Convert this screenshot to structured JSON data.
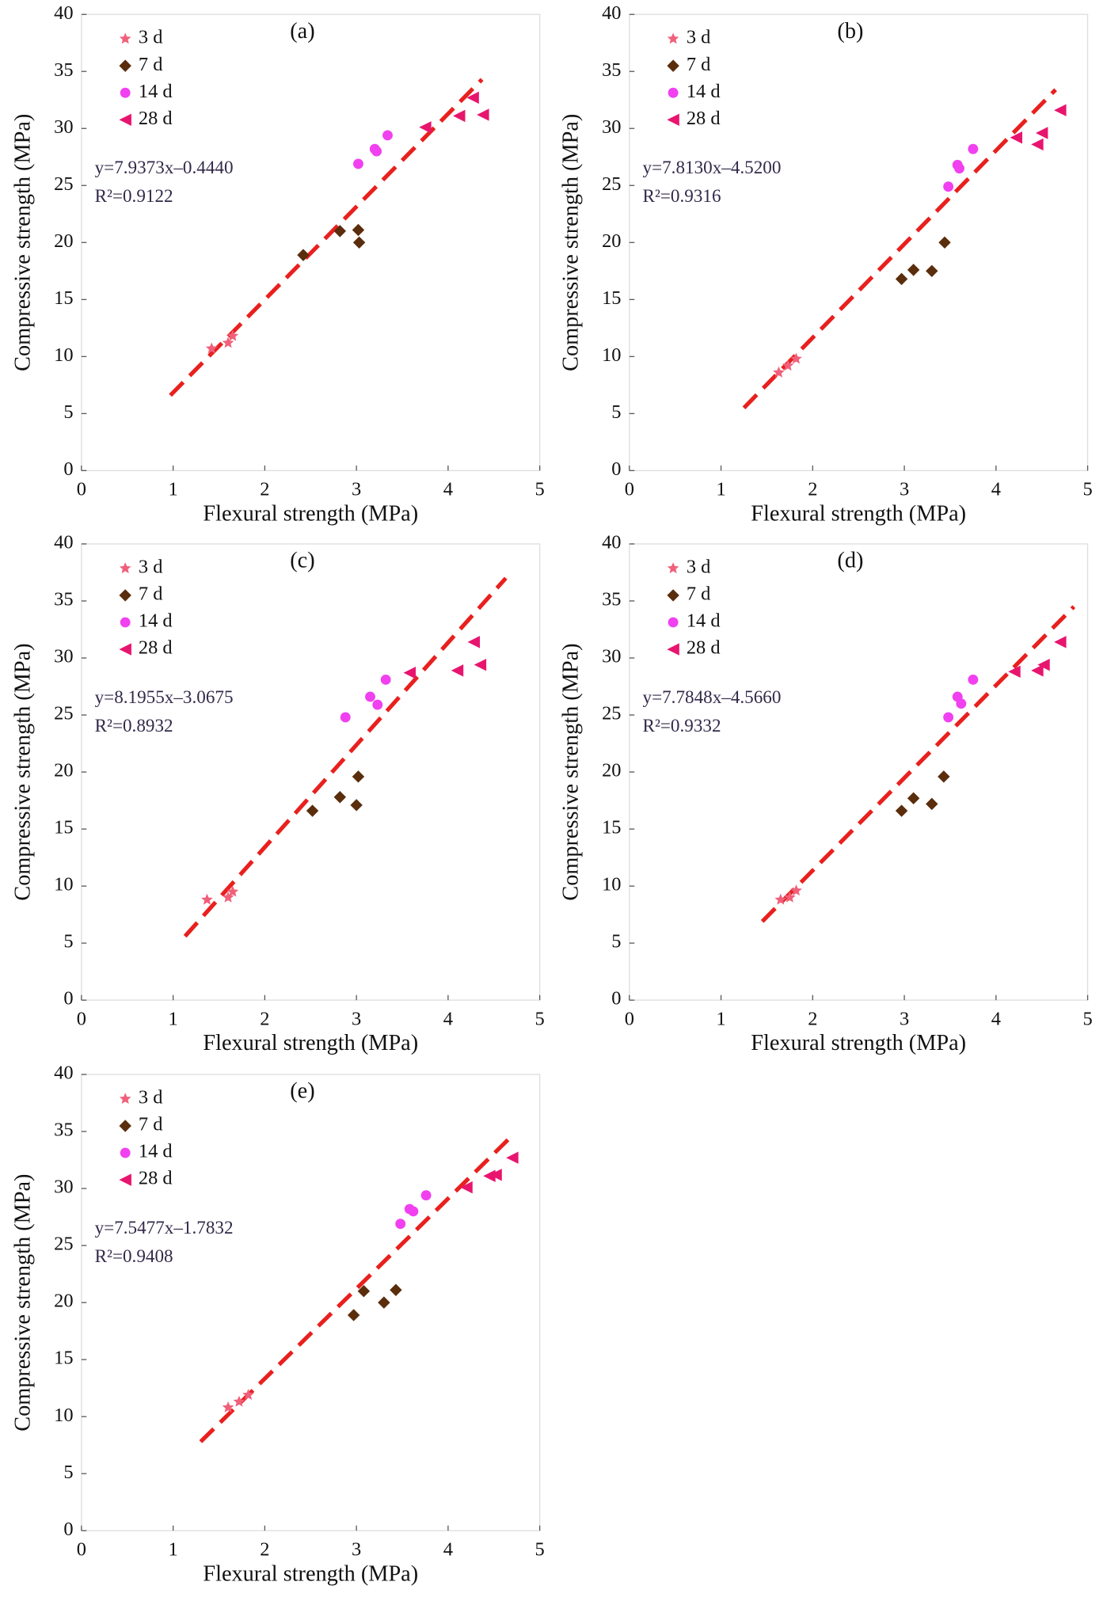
{
  "chart_data": [
    {
      "type": "scatter",
      "title": "(a)",
      "x_label": "Flexural strength (MPa)",
      "y_label": "Compressive strength (MPa)",
      "equation": "y=7.9373x–0.4440",
      "r2": "R²=0.9122",
      "xlim": [
        0,
        5
      ],
      "ylim": [
        0,
        40
      ],
      "xticks": [
        0,
        1,
        2,
        3,
        4,
        5
      ],
      "yticks": [
        0,
        5,
        10,
        15,
        20,
        25,
        30,
        35,
        40
      ],
      "fit_line": {
        "color": "#e8201e",
        "x": [
          0.97,
          4.37
        ],
        "y": [
          6.6,
          34.3
        ]
      },
      "series": [
        {
          "name": "3 d",
          "color": "#f0607a",
          "marker": "star",
          "x": [
            1.42,
            1.6,
            1.65
          ],
          "values": [
            10.7,
            11.2,
            11.8
          ]
        },
        {
          "name": "7 d",
          "color": "#5a2d0c",
          "marker": "diamond",
          "x": [
            2.42,
            2.82,
            3.02,
            3.03
          ],
          "values": [
            18.9,
            21.0,
            21.1,
            20.0
          ]
        },
        {
          "name": "14 d",
          "color": "#f040f0",
          "marker": "circle",
          "x": [
            3.02,
            3.2,
            3.22,
            3.34
          ],
          "values": [
            26.9,
            28.2,
            28.0,
            29.4
          ]
        },
        {
          "name": "28 d",
          "color": "#e8156e",
          "marker": "triangle-left",
          "x": [
            3.75,
            4.12,
            4.27,
            4.38
          ],
          "values": [
            30.1,
            31.1,
            32.7,
            31.2
          ]
        }
      ]
    },
    {
      "type": "scatter",
      "title": "(b)",
      "x_label": "Flexural strength (MPa)",
      "y_label": "Compressive strength (MPa)",
      "equation": "y=7.8130x–4.5200",
      "r2": "R²=0.9316",
      "xlim": [
        0,
        5
      ],
      "ylim": [
        0,
        40
      ],
      "xticks": [
        0,
        1,
        2,
        3,
        4,
        5
      ],
      "yticks": [
        0,
        5,
        10,
        15,
        20,
        25,
        30,
        35,
        40
      ],
      "fit_line": {
        "color": "#e8201e",
        "x": [
          1.25,
          4.65
        ],
        "y": [
          5.5,
          33.4
        ]
      },
      "series": [
        {
          "name": "3 d",
          "color": "#f0607a",
          "marker": "star",
          "x": [
            1.63,
            1.73,
            1.82
          ],
          "values": [
            8.6,
            9.2,
            9.8
          ]
        },
        {
          "name": "7 d",
          "color": "#5a2d0c",
          "marker": "diamond",
          "x": [
            2.97,
            3.1,
            3.3,
            3.44
          ],
          "values": [
            16.8,
            17.6,
            17.5,
            20.0
          ]
        },
        {
          "name": "14 d",
          "color": "#f040f0",
          "marker": "circle",
          "x": [
            3.48,
            3.58,
            3.6,
            3.75
          ],
          "values": [
            24.9,
            26.8,
            26.5,
            28.2
          ]
        },
        {
          "name": "28 d",
          "color": "#e8156e",
          "marker": "triangle-left",
          "x": [
            4.22,
            4.45,
            4.5,
            4.7
          ],
          "values": [
            29.2,
            28.6,
            29.6,
            31.6
          ]
        }
      ]
    },
    {
      "type": "scatter",
      "title": "(c)",
      "x_label": "Flexural strength (MPa)",
      "y_label": "Compressive strength (MPa)",
      "equation": "y=8.1955x–3.0675",
      "r2": "R²=0.8932",
      "xlim": [
        0,
        5
      ],
      "ylim": [
        0,
        40
      ],
      "xticks": [
        0,
        1,
        2,
        3,
        4,
        5
      ],
      "yticks": [
        0,
        5,
        10,
        15,
        20,
        25,
        30,
        35,
        40
      ],
      "fit_line": {
        "color": "#e8201e",
        "x": [
          1.13,
          4.63
        ],
        "y": [
          5.6,
          37.0
        ]
      },
      "series": [
        {
          "name": "3 d",
          "color": "#f0607a",
          "marker": "star",
          "x": [
            1.37,
            1.6,
            1.65
          ],
          "values": [
            8.8,
            9.0,
            9.5
          ]
        },
        {
          "name": "7 d",
          "color": "#5a2d0c",
          "marker": "diamond",
          "x": [
            2.52,
            2.82,
            3.0,
            3.02
          ],
          "values": [
            16.6,
            17.8,
            17.1,
            19.6
          ]
        },
        {
          "name": "14 d",
          "color": "#f040f0",
          "marker": "circle",
          "x": [
            2.88,
            3.15,
            3.23,
            3.32
          ],
          "values": [
            24.8,
            26.6,
            25.9,
            28.1
          ]
        },
        {
          "name": "28 d",
          "color": "#e8156e",
          "marker": "triangle-left",
          "x": [
            3.58,
            4.1,
            4.28,
            4.35
          ],
          "values": [
            28.7,
            28.9,
            31.4,
            29.4
          ]
        }
      ]
    },
    {
      "type": "scatter",
      "title": "(d)",
      "x_label": "Flexural strength (MPa)",
      "y_label": "Compressive strength (MPa)",
      "equation": "y=7.7848x–4.5660",
      "r2": "R²=0.9332",
      "xlim": [
        0,
        5
      ],
      "ylim": [
        0,
        40
      ],
      "xticks": [
        0,
        1,
        2,
        3,
        4,
        5
      ],
      "yticks": [
        0,
        5,
        10,
        15,
        20,
        25,
        30,
        35,
        40
      ],
      "fit_line": {
        "color": "#e8201e",
        "x": [
          1.45,
          4.85
        ],
        "y": [
          6.9,
          34.5
        ]
      },
      "series": [
        {
          "name": "3 d",
          "color": "#f0607a",
          "marker": "star",
          "x": [
            1.65,
            1.75,
            1.82
          ],
          "values": [
            8.8,
            9.0,
            9.6
          ]
        },
        {
          "name": "7 d",
          "color": "#5a2d0c",
          "marker": "diamond",
          "x": [
            2.97,
            3.1,
            3.3,
            3.43
          ],
          "values": [
            16.6,
            17.7,
            17.2,
            19.6
          ]
        },
        {
          "name": "14 d",
          "color": "#f040f0",
          "marker": "circle",
          "x": [
            3.48,
            3.58,
            3.62,
            3.75
          ],
          "values": [
            24.8,
            26.6,
            26.0,
            28.1
          ]
        },
        {
          "name": "28 d",
          "color": "#e8156e",
          "marker": "triangle-left",
          "x": [
            4.2,
            4.45,
            4.52,
            4.7
          ],
          "values": [
            28.8,
            28.9,
            29.4,
            31.4
          ]
        }
      ]
    },
    {
      "type": "scatter",
      "title": "(e)",
      "x_label": "Flexural strength (MPa)",
      "y_label": "Compressive strength (MPa)",
      "equation": "y=7.5477x–1.7832",
      "r2": "R²=0.9408",
      "xlim": [
        0,
        5
      ],
      "ylim": [
        0,
        40
      ],
      "xticks": [
        0,
        1,
        2,
        3,
        4,
        5
      ],
      "yticks": [
        0,
        5,
        10,
        15,
        20,
        25,
        30,
        35,
        40
      ],
      "fit_line": {
        "color": "#e8201e",
        "x": [
          1.3,
          4.72
        ],
        "y": [
          7.8,
          34.8
        ]
      },
      "series": [
        {
          "name": "3 d",
          "color": "#f0607a",
          "marker": "star",
          "x": [
            1.6,
            1.72,
            1.82
          ],
          "values": [
            10.8,
            11.3,
            11.9
          ]
        },
        {
          "name": "7 d",
          "color": "#5a2d0c",
          "marker": "diamond",
          "x": [
            2.97,
            3.08,
            3.3,
            3.43
          ],
          "values": [
            18.9,
            21.0,
            20.0,
            21.1
          ]
        },
        {
          "name": "14 d",
          "color": "#f040f0",
          "marker": "circle",
          "x": [
            3.48,
            3.58,
            3.62,
            3.76
          ],
          "values": [
            26.9,
            28.2,
            28.0,
            29.4
          ]
        },
        {
          "name": "28 d",
          "color": "#e8156e",
          "marker": "triangle-left",
          "x": [
            4.2,
            4.45,
            4.52,
            4.7
          ],
          "values": [
            30.1,
            31.1,
            31.2,
            32.7
          ]
        }
      ]
    }
  ]
}
